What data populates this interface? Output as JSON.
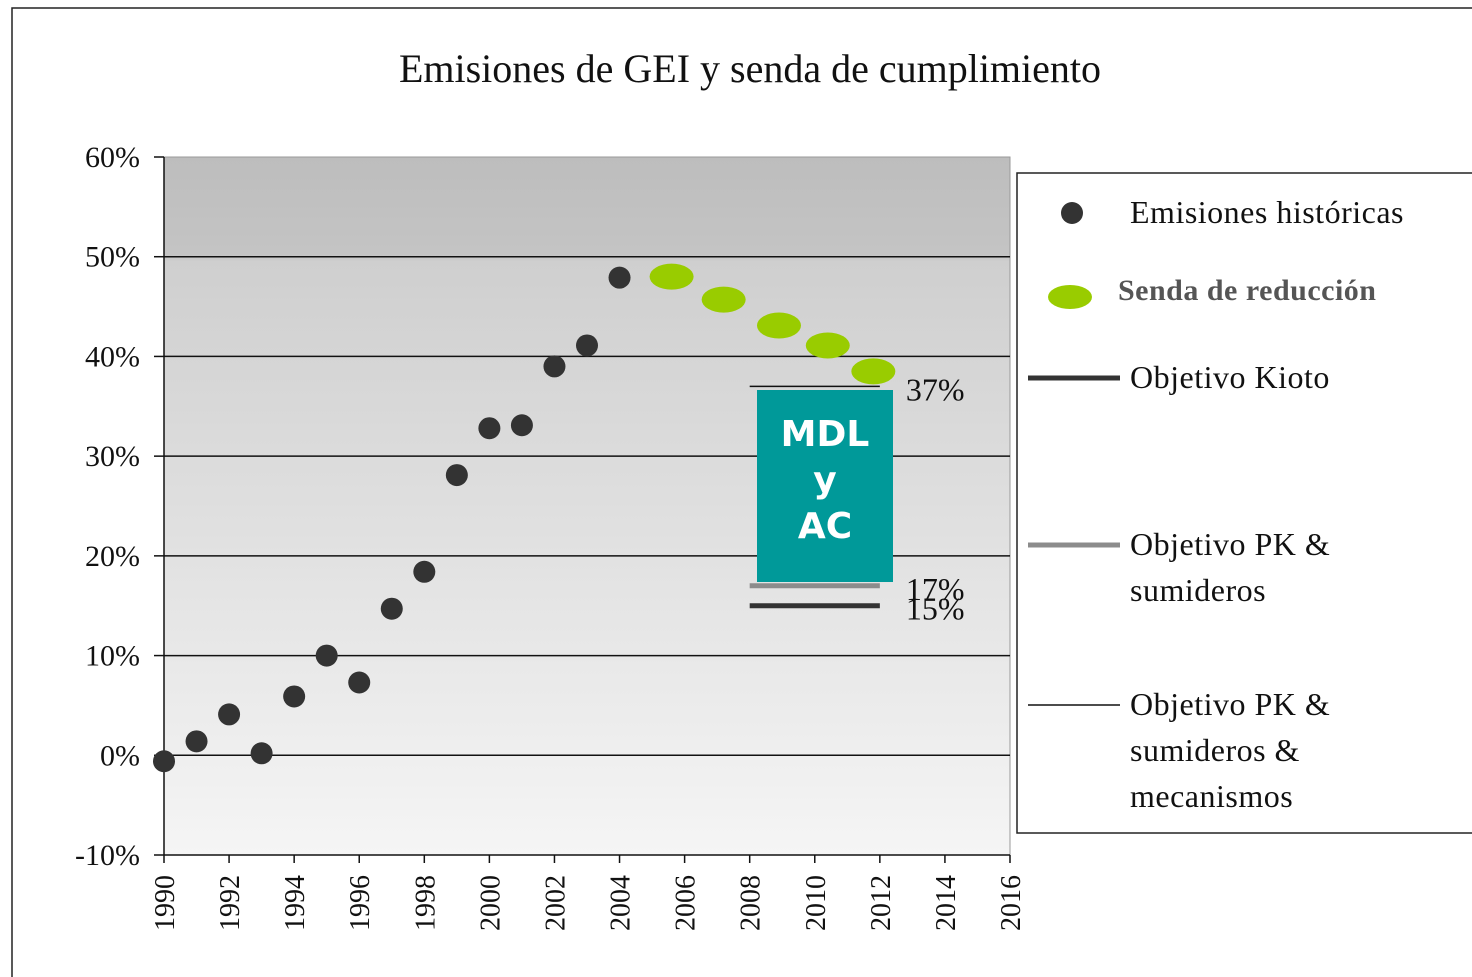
{
  "chart_data": {
    "type": "scatter",
    "title": "Emisiones de GEI y senda de cumplimiento",
    "xlim": [
      1990,
      2016
    ],
    "xticks": [
      1990,
      1992,
      1994,
      1996,
      1998,
      2000,
      2002,
      2004,
      2006,
      2008,
      2010,
      2012,
      2014,
      2016
    ],
    "ylim": [
      -10,
      60
    ],
    "yticks": [
      {
        "value": -10,
        "label": "-10%"
      },
      {
        "value": 0,
        "label": "0%"
      },
      {
        "value": 10,
        "label": "10%"
      },
      {
        "value": 20,
        "label": "20%"
      },
      {
        "value": 30,
        "label": "30%"
      },
      {
        "value": 40,
        "label": "40%"
      },
      {
        "value": 50,
        "label": "50%"
      },
      {
        "value": 60,
        "label": "60%"
      }
    ],
    "grid": true,
    "series": [
      {
        "name": "Emisiones históricas",
        "type": "scatter",
        "color": "#333333",
        "x": [
          1990,
          1991,
          1992,
          1993,
          1994,
          1995,
          1996,
          1997,
          1998,
          1999,
          2000,
          2001,
          2002,
          2003,
          2004
        ],
        "values": [
          -0.6,
          1.4,
          4.1,
          0.2,
          5.9,
          10.0,
          7.3,
          14.7,
          18.4,
          28.1,
          32.8,
          33.1,
          39.0,
          41.1,
          47.9
        ]
      },
      {
        "name": "Senda de reducción",
        "type": "scatter",
        "color": "#99cc00",
        "x": [
          2005.6,
          2007.2,
          2008.9,
          2010.4,
          2011.8
        ],
        "values": [
          48.0,
          45.7,
          43.1,
          41.1,
          38.5
        ]
      },
      {
        "name": "Objetivo Kioto",
        "type": "line",
        "color": "#333333",
        "x": [
          2008,
          2012
        ],
        "values": [
          15,
          15
        ],
        "value_labels": [
          null,
          "15%"
        ]
      },
      {
        "name": "Objetivo PK & sumideros",
        "type": "line",
        "color": "#8c8c8c",
        "x": [
          2008,
          2012
        ],
        "values": [
          17,
          17
        ],
        "value_labels": [
          null,
          "17%"
        ]
      },
      {
        "name": "Objetivo PK & sumideros & mecanismos",
        "type": "line",
        "color": "#111111",
        "x": [
          2008,
          2012
        ],
        "values": [
          37,
          37
        ],
        "value_labels": [
          null,
          "37%"
        ]
      }
    ],
    "annotations": [
      "MDL y AC"
    ]
  }
}
